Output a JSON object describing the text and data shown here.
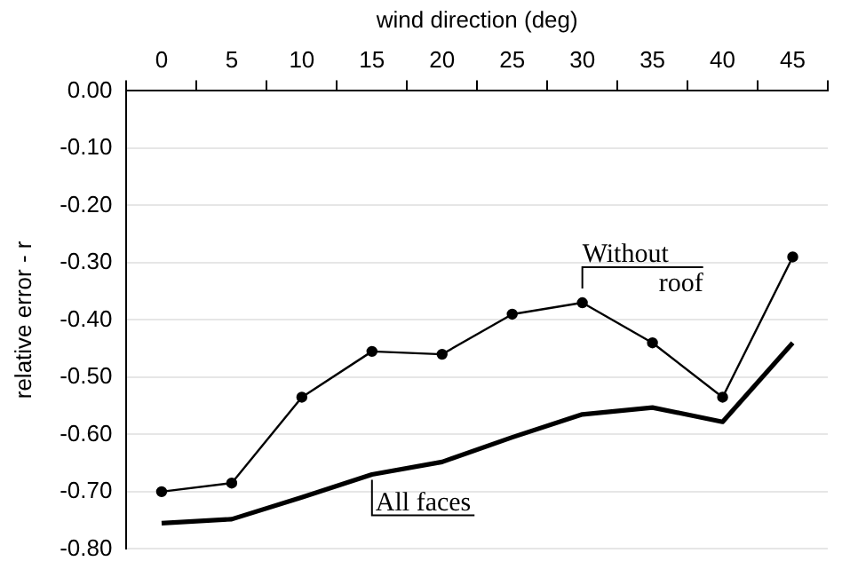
{
  "chart_data": {
    "type": "line",
    "xlabel": "wind direction (deg)",
    "ylabel": "relative error - r",
    "categories": [
      "0",
      "5",
      "10",
      "15",
      "20",
      "25",
      "30",
      "35",
      "40",
      "45"
    ],
    "ylim": [
      -0.8,
      0
    ],
    "yticks": [
      {
        "value": 0,
        "label": "0.00"
      },
      {
        "value": -0.1,
        "label": "-0.10"
      },
      {
        "value": -0.2,
        "label": "-0.20"
      },
      {
        "value": -0.3,
        "label": "-0.30"
      },
      {
        "value": -0.4,
        "label": "-0.40"
      },
      {
        "value": -0.5,
        "label": "-0.50"
      },
      {
        "value": -0.6,
        "label": "-0.60"
      },
      {
        "value": -0.7,
        "label": "-0.70"
      },
      {
        "value": -0.8,
        "label": "-0.80"
      }
    ],
    "grid": "y",
    "legend": false,
    "series": [
      {
        "name": "Without roof",
        "color": "#000000",
        "marker": "circle",
        "values": [
          -0.7,
          -0.685,
          -0.535,
          -0.455,
          -0.46,
          -0.39,
          -0.37,
          -0.44,
          -0.535,
          -0.29
        ]
      },
      {
        "name": "All faces",
        "color": "#000000",
        "marker": "none",
        "values": [
          -0.755,
          -0.748,
          -0.71,
          -0.67,
          -0.648,
          -0.605,
          -0.565,
          -0.553,
          -0.578,
          -0.44
        ]
      }
    ]
  }
}
